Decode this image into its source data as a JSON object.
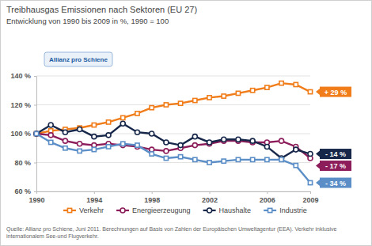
{
  "chart_data": {
    "type": "line",
    "title": "Treibhausgas Emissionen nach Sektoren (EU 27)",
    "subtitle": "Entwicklung von 1990 bis 2009 in %, 1990 = 100",
    "source": "Quelle: Allianz pro Schiene, Juni 2011. Berechnungen auf Basis von Zahlen der Europäischen Umweltagentur (EEA). Verkehr inklusive internationalem See-und Flugverkehr.",
    "x": [
      1990,
      1991,
      1992,
      1993,
      1994,
      1995,
      1996,
      1997,
      1998,
      1999,
      2000,
      2001,
      2002,
      2003,
      2004,
      2005,
      2006,
      2007,
      2008,
      2009
    ],
    "xlim": [
      1990,
      2009
    ],
    "xticks": [
      1990,
      1994,
      1998,
      2002,
      2006,
      2009
    ],
    "ylim": [
      60,
      140
    ],
    "yticks": [
      {
        "value": 60,
        "label": "60 %"
      },
      {
        "value": 80,
        "label": "80 %"
      },
      {
        "value": 100,
        "label": "100 %"
      },
      {
        "value": 120,
        "label": "120 %"
      },
      {
        "value": 140,
        "label": "140 %"
      }
    ],
    "grid": true,
    "legend": "bottom",
    "series": [
      {
        "name": "Verkehr",
        "color": "#f07d1a",
        "marker": "square",
        "values": [
          100,
          102,
          103,
          104,
          106,
          108,
          111,
          114,
          118,
          120,
          121,
          123,
          125,
          126,
          128,
          130,
          132,
          135,
          134,
          129
        ]
      },
      {
        "name": "Energieerzeugung",
        "color": "#8c1d5a",
        "marker": "circle",
        "values": [
          100,
          99,
          95,
          93,
          92,
          93,
          92,
          91,
          89,
          88,
          90,
          92,
          93,
          95,
          95,
          94,
          94,
          95,
          91,
          83
        ]
      },
      {
        "name": "Haushalte",
        "color": "#17274a",
        "marker": "circle",
        "values": [
          100,
          106,
          101,
          103,
          98,
          99,
          107,
          101,
          100,
          94,
          92,
          98,
          94,
          96,
          96,
          95,
          91,
          83,
          89,
          86
        ]
      },
      {
        "name": "Industrie",
        "color": "#5b8ec7",
        "marker": "square",
        "values": [
          100,
          94,
          90,
          88,
          89,
          91,
          93,
          92,
          86,
          83,
          84,
          82,
          80,
          81,
          82,
          82,
          82,
          82,
          78,
          66
        ]
      }
    ],
    "annotations": [
      {
        "text": "Allianz pro Schiene"
      },
      {
        "text": "+ 29 %",
        "series": "Verkehr"
      },
      {
        "text": "- 14 %",
        "series": "Haushalte"
      },
      {
        "text": "- 17 %",
        "series": "Energieerzeugung"
      },
      {
        "text": "- 34 %",
        "series": "Industrie"
      }
    ]
  }
}
